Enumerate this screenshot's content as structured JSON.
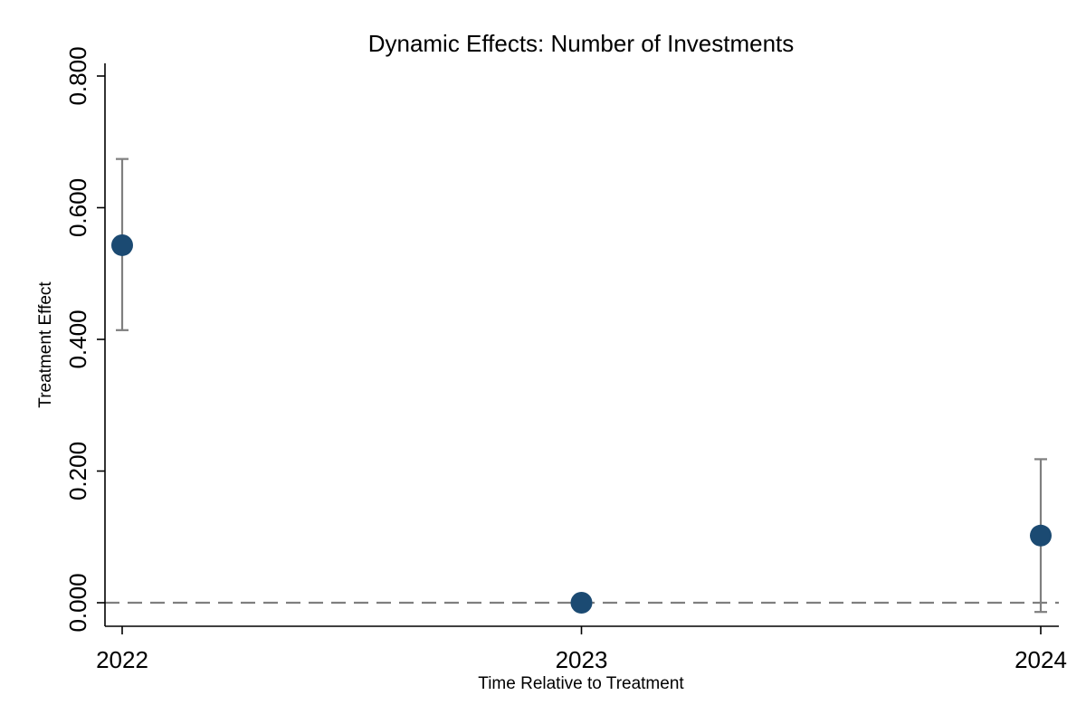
{
  "chart_data": {
    "type": "scatter",
    "title": "Dynamic Effects: Number of Investments",
    "xlabel": "Time Relative to Treatment",
    "ylabel": "Treatment Effect",
    "categories": [
      "2022",
      "2023",
      "2024"
    ],
    "x_tick_labels": [
      "2022",
      "2023",
      "2024"
    ],
    "y_tick_labels": [
      "0.000",
      "0.200",
      "0.400",
      "0.600",
      "0.800"
    ],
    "y_ticks": [
      0,
      0.2,
      0.4,
      0.6,
      0.8
    ],
    "ylim": [
      -0.036,
      0.822
    ],
    "grid": false,
    "legend": "none",
    "reference_line": {
      "y": 0,
      "style": "dashed"
    },
    "series": [
      {
        "values": [
          0.543,
          0.0,
          0.102
        ],
        "ci_low": [
          0.414,
          null,
          -0.014
        ],
        "ci_high": [
          0.674,
          null,
          0.218
        ]
      }
    ],
    "colors": {
      "marker": "#1b4a72",
      "error_bar": "#7f7f7f",
      "reference_line": "#7f7f7f",
      "axis": "#000000"
    }
  }
}
